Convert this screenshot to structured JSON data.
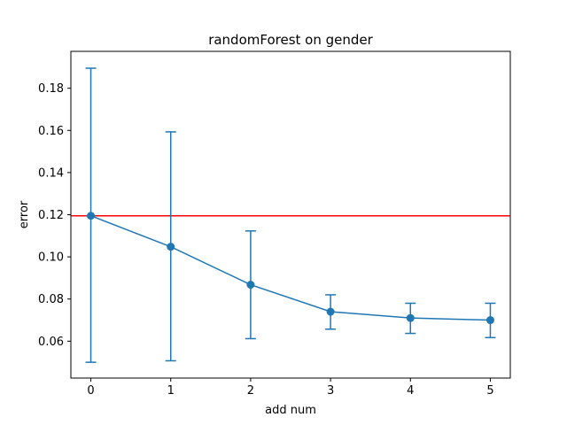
{
  "chart_data": {
    "type": "line",
    "title": "randomForest on gender",
    "xlabel": "add num",
    "ylabel": "error",
    "xlim": [
      -0.25,
      5.25
    ],
    "ylim": [
      0.0425,
      0.1975
    ],
    "x_ticks": [
      "0",
      "1",
      "2",
      "3",
      "4",
      "5"
    ],
    "y_ticks": [
      "0.06",
      "0.08",
      "0.10",
      "0.12",
      "0.14",
      "0.16",
      "0.18"
    ],
    "grid": false,
    "series": [
      {
        "x": [
          0,
          1,
          2,
          3,
          4,
          5
        ],
        "values": [
          0.1195,
          0.1048,
          0.0868,
          0.074,
          0.071,
          0.07
        ],
        "error_low": [
          0.05,
          0.0507,
          0.0612,
          0.0657,
          0.0637,
          0.0617
        ],
        "error_high": [
          0.1895,
          0.1593,
          0.1123,
          0.082,
          0.078,
          0.078
        ],
        "color": "#1f77b4",
        "marker": "circle"
      }
    ],
    "reference_line": {
      "y": 0.1195,
      "color": "#ff0000",
      "orientation": "horizontal"
    }
  }
}
